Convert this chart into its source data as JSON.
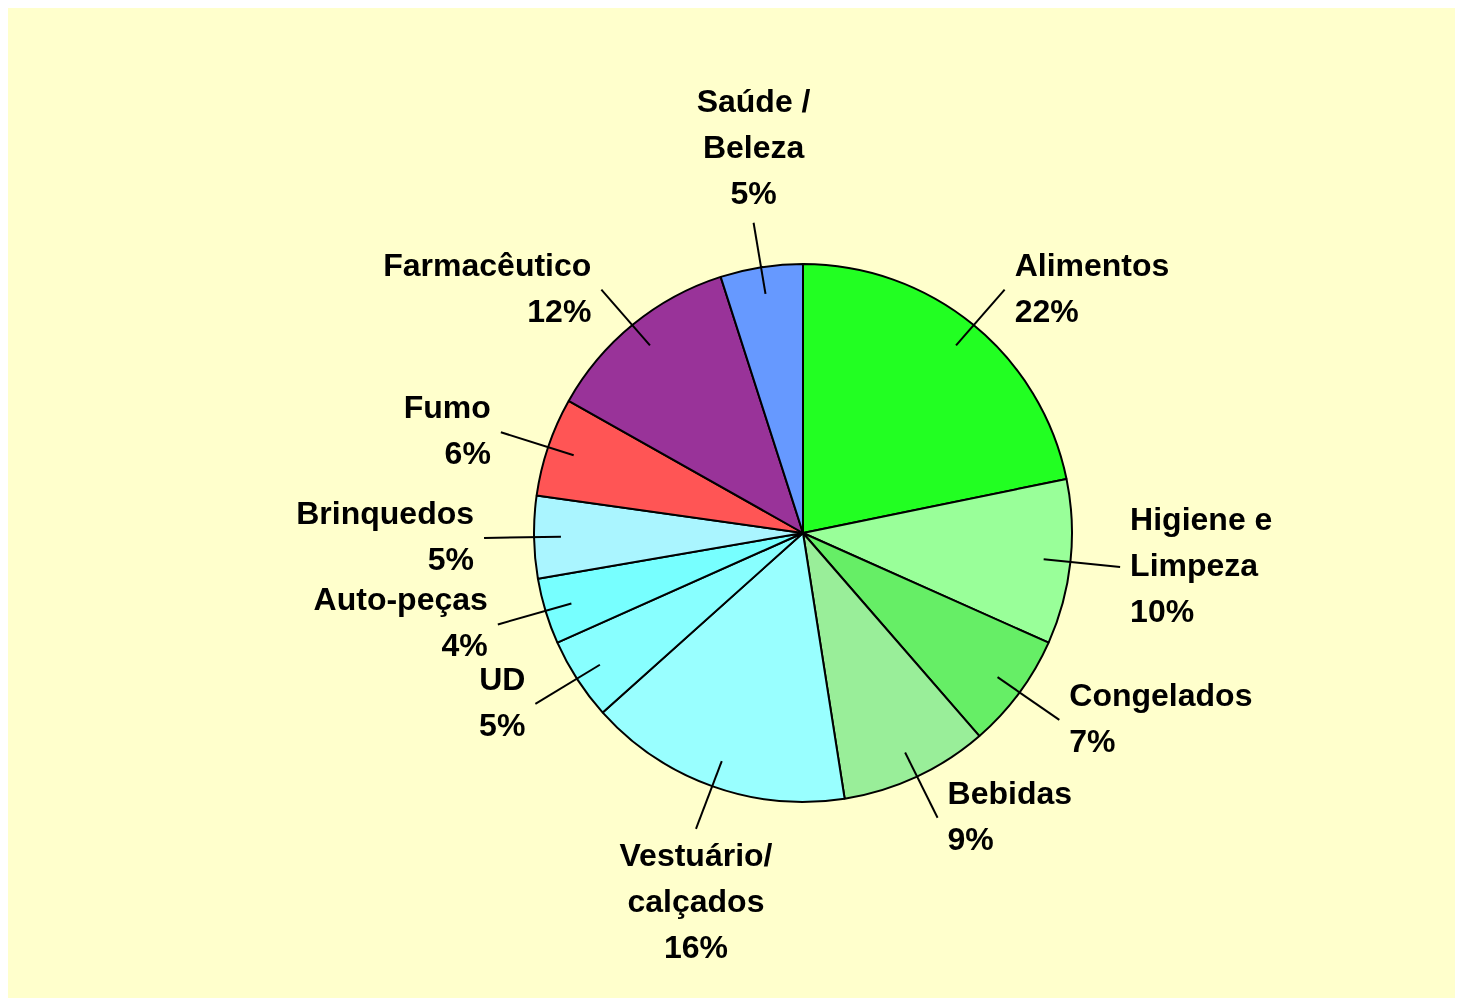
{
  "chart_data": {
    "type": "pie",
    "categories": [
      "Alimentos",
      "Higiene e Limpeza",
      "Congelados",
      "Bebidas",
      "Vestuário/ calçados",
      "UD",
      "Auto-peças",
      "Brinquedos",
      "Fumo",
      "Farmacêutico",
      "Saúde / Beleza"
    ],
    "values": [
      22,
      10,
      7,
      9,
      16,
      5,
      4,
      5,
      6,
      12,
      5
    ],
    "value_labels": [
      "22%",
      "10%",
      "7%",
      "9%",
      "16%",
      "5%",
      "4%",
      "5%",
      "6%",
      "12%",
      "5%"
    ],
    "colors": [
      "#22ff22",
      "#99ff99",
      "#66ee66",
      "#99ee99",
      "#99ffff",
      "#88ffff",
      "#77ffff",
      "#aaf5ff",
      "#ff5555",
      "#993399",
      "#6699ff"
    ],
    "legend": false
  }
}
